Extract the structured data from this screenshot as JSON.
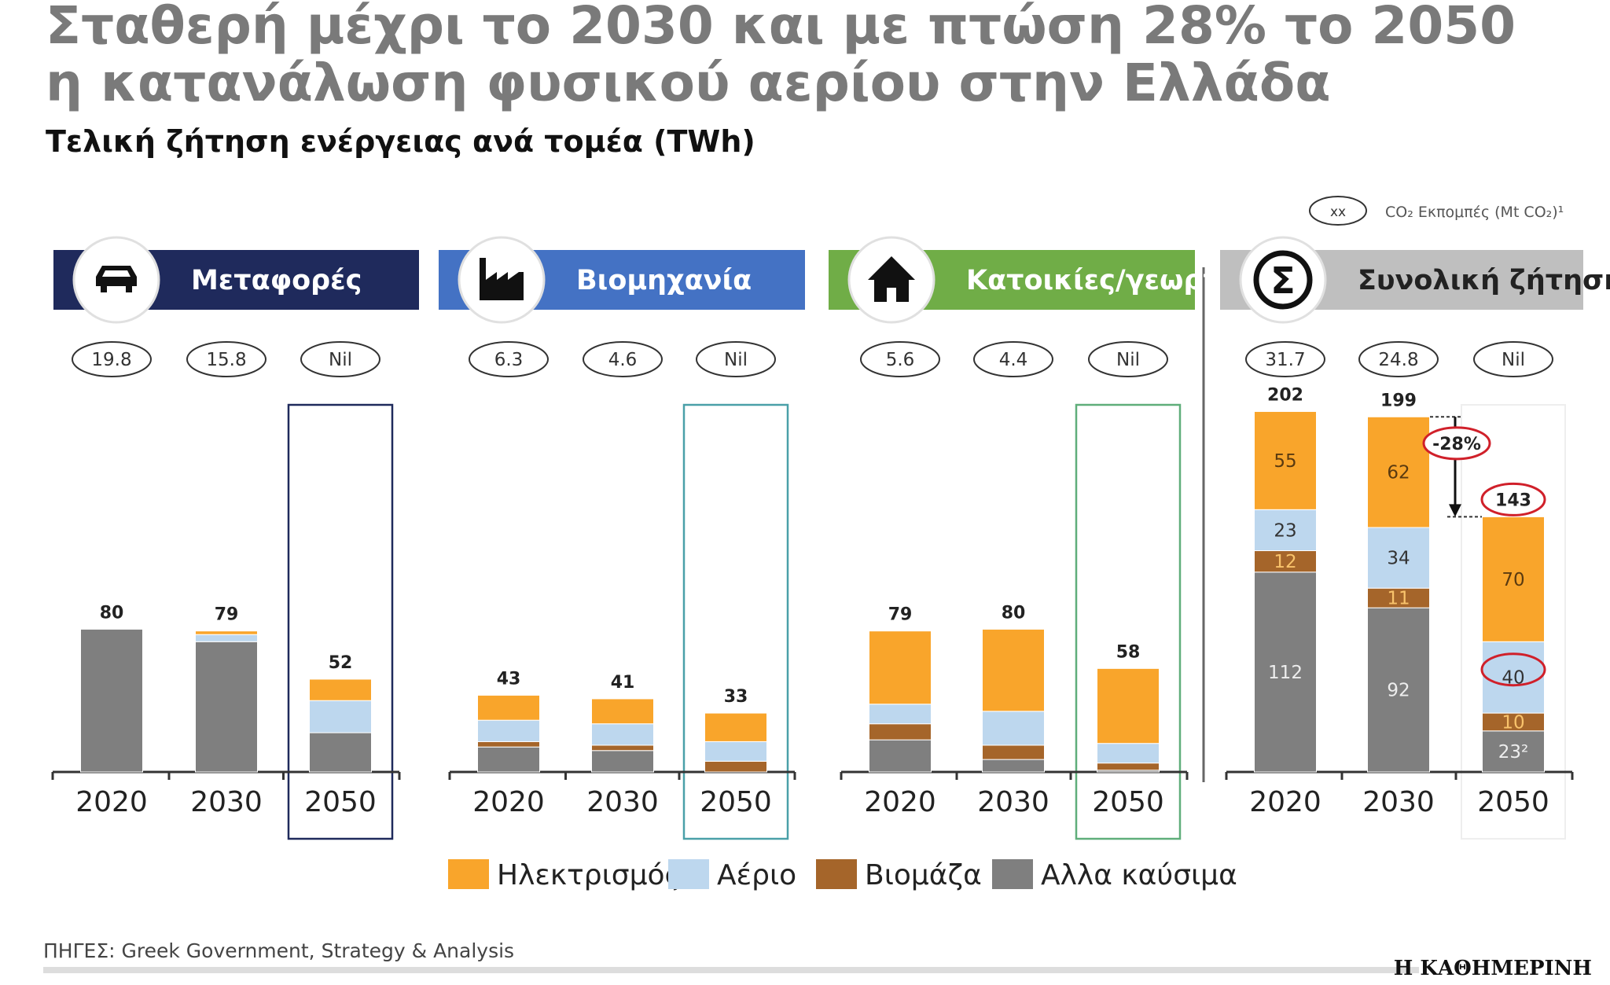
{
  "title_line1": "Σταθερή μέχρι το 2030 και με πτώση 28% το 2050",
  "title_line2": "η κατανάλωση φυσικού αερίου στην Ελλάδα",
  "subtitle": "Τελική ζήτηση ενέργειας ανά τομέα (TWh)",
  "co2_legend": {
    "oval": "xx",
    "label": "CO₂ Εκπομπές (Mt CO₂)¹"
  },
  "colors": {
    "electricity": "#F9A52B",
    "gas": "#BDD7EE",
    "biomass": "#A5652A",
    "other": "#7F7F7F"
  },
  "legend": [
    "Ηλεκτρισμός",
    "Αέριο",
    "Βιομάζα",
    "Αλλα καύσιμα"
  ],
  "source": "ΠΗΓΕΣ: Greek Government, Strategy & Analysis",
  "logo": "Η ΚΑΘΗΜΕΡΙΝΗ",
  "chart_data": [
    {
      "type": "bar",
      "stacked": true,
      "title": "Μεταφορές",
      "icon": "car-icon",
      "header_color": "#1F2A5C",
      "categories": [
        "2020",
        "2030",
        "2050"
      ],
      "co2": [
        "19.8",
        "15.8",
        "Nil"
      ],
      "totals": [
        80,
        79,
        52
      ],
      "series": [
        {
          "name": "Ηλεκτρισμός",
          "values": [
            0,
            2,
            12
          ]
        },
        {
          "name": "Αέριο",
          "values": [
            0,
            4,
            18
          ]
        },
        {
          "name": "Βιομάζα",
          "values": [
            0,
            0,
            0
          ]
        },
        {
          "name": "Αλλα καύσιμα",
          "values": [
            80,
            73,
            22
          ]
        }
      ]
    },
    {
      "type": "bar",
      "stacked": true,
      "title": "Βιομηχανία",
      "icon": "factory-icon",
      "header_color": "#4472C4",
      "categories": [
        "2020",
        "2030",
        "2050"
      ],
      "co2": [
        "6.3",
        "4.6",
        "Nil"
      ],
      "totals": [
        43,
        41,
        33
      ],
      "series": [
        {
          "name": "Ηλεκτρισμός",
          "values": [
            14,
            14,
            16
          ]
        },
        {
          "name": "Αέριο",
          "values": [
            12,
            12,
            11
          ]
        },
        {
          "name": "Βιομάζα",
          "values": [
            3,
            3,
            6
          ]
        },
        {
          "name": "Αλλα καύσιμα",
          "values": [
            14,
            12,
            0
          ]
        }
      ]
    },
    {
      "type": "bar",
      "stacked": true,
      "title": "Κατοικίες/γεωργία",
      "icon": "house-icon",
      "header_color": "#70AD47",
      "categories": [
        "2020",
        "2030",
        "2050"
      ],
      "co2": [
        "5.6",
        "4.4",
        "Nil"
      ],
      "totals": [
        79,
        80,
        58
      ],
      "series": [
        {
          "name": "Ηλεκτρισμός",
          "values": [
            41,
            46,
            42
          ]
        },
        {
          "name": "Αέριο",
          "values": [
            11,
            19,
            11
          ]
        },
        {
          "name": "Βιομάζα",
          "values": [
            9,
            8,
            4
          ]
        },
        {
          "name": "Αλλα καύσιμα",
          "values": [
            18,
            7,
            1
          ]
        }
      ]
    },
    {
      "type": "bar",
      "stacked": true,
      "title": "Συνολική ζήτηση",
      "icon": "sigma-icon",
      "header_color": "#BFBFBF",
      "categories": [
        "2020",
        "2030",
        "2050"
      ],
      "co2": [
        "31.7",
        "24.8",
        "Nil"
      ],
      "totals": [
        202,
        199,
        143
      ],
      "series": [
        {
          "name": "Ηλεκτρισμός",
          "values": [
            55,
            62,
            70
          ],
          "labels": [
            "55",
            "62",
            "70"
          ]
        },
        {
          "name": "Αέριο",
          "values": [
            23,
            34,
            40
          ],
          "labels": [
            "23",
            "34",
            "40"
          ]
        },
        {
          "name": "Βιομάζα",
          "values": [
            12,
            11,
            10
          ],
          "labels": [
            "12",
            "11",
            "10"
          ]
        },
        {
          "name": "Αλλα καύσιμα",
          "values": [
            112,
            92,
            23
          ],
          "labels": [
            "112",
            "92",
            "23²"
          ]
        }
      ],
      "annotations": [
        "-28%"
      ]
    }
  ]
}
